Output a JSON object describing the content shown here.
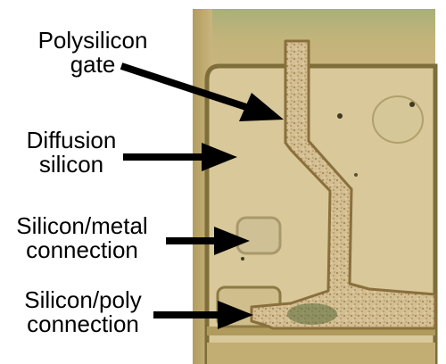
{
  "labels": {
    "polysilicon_gate": [
      "Polysilicon",
      "gate"
    ],
    "diffusion_silicon": [
      "Diffusion",
      "silicon"
    ],
    "silicon_metal_connection": [
      "Silicon/metal",
      "connection"
    ],
    "silicon_poly_connection": [
      "Silicon/poly",
      "connection"
    ]
  },
  "colors": {
    "die_background": "#c9b57e",
    "diffusion_region": "#d8c89a",
    "region_edge": "#7e6e3a",
    "polysilicon": "#cdb58a",
    "polysilicon_edge": "#8a6f3c",
    "arrow": "#000000",
    "label_text": "#000000"
  }
}
